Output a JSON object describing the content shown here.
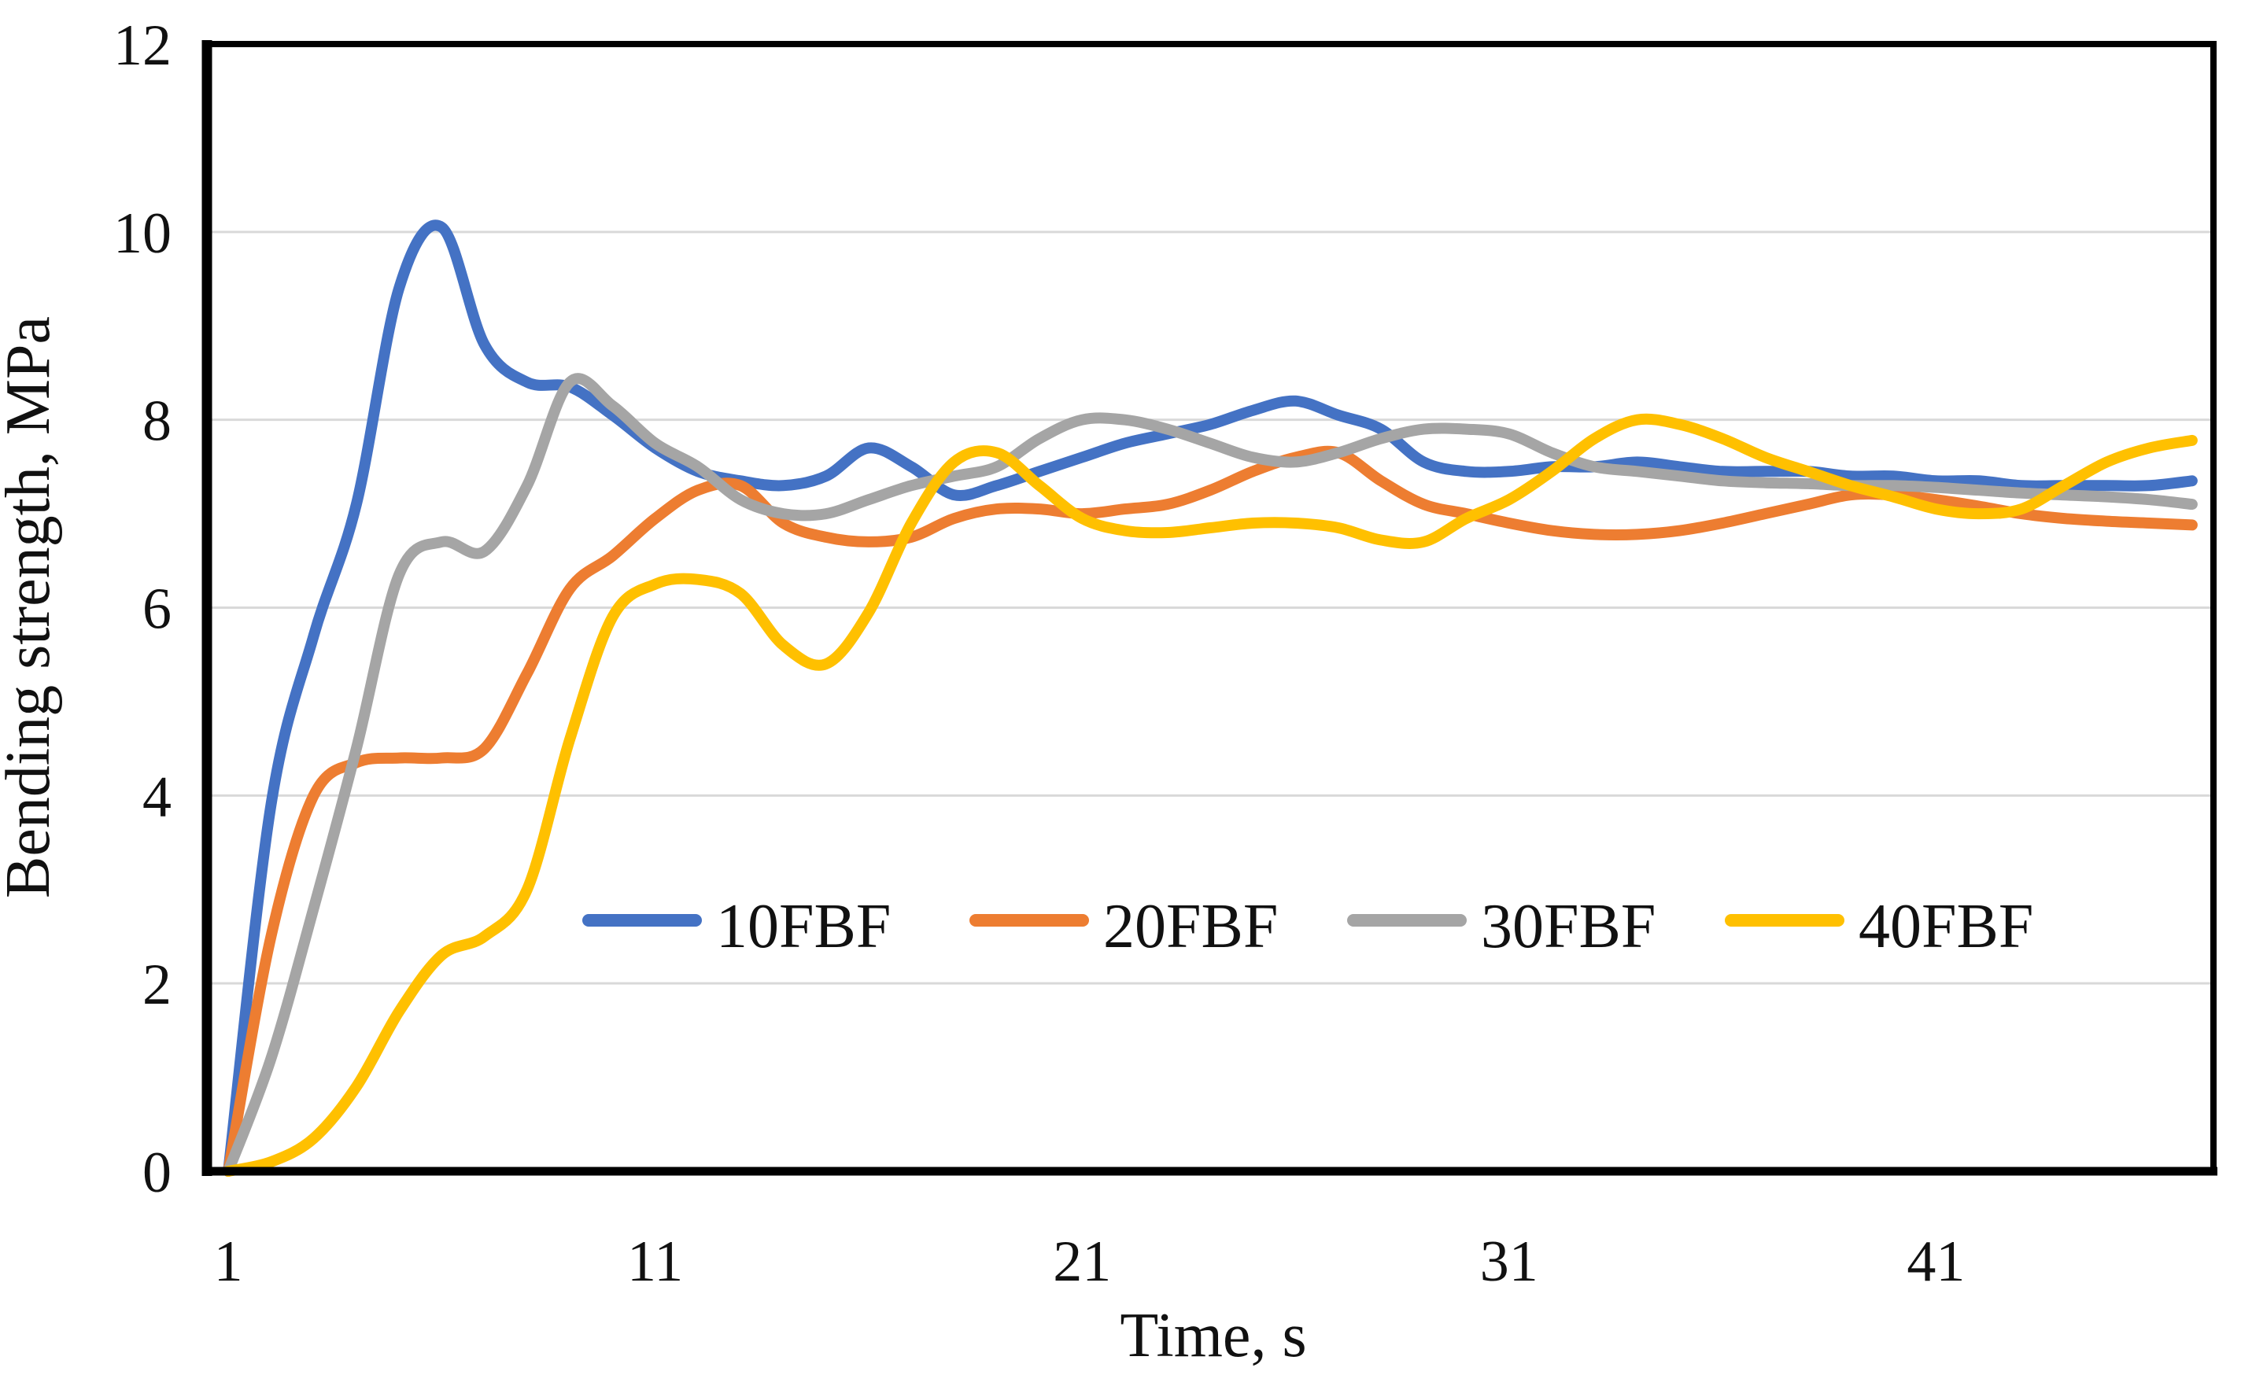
{
  "chart_data": {
    "type": "line",
    "title": "",
    "xlabel": "Time, s",
    "ylabel": "Bending strength, MPa",
    "ylim": [
      0,
      12
    ],
    "y_ticks": [
      0,
      2,
      4,
      6,
      8,
      10,
      12
    ],
    "x_ticks": [
      1,
      11,
      21,
      31,
      41
    ],
    "grid": "horizontal",
    "gridline_color": "#D9D9D9",
    "axis_color": "#000000",
    "background": "#FFFFFF",
    "legend_position": "inside-bottom",
    "line_smoothing": true,
    "x": [
      1,
      2,
      3,
      4,
      5,
      6,
      7,
      8,
      9,
      10,
      11,
      12,
      13,
      14,
      15,
      16,
      17,
      18,
      19,
      20,
      21,
      22,
      23,
      24,
      25,
      26,
      27,
      28,
      29,
      30,
      31,
      32,
      33,
      34,
      35,
      36,
      37,
      38,
      39,
      40,
      41,
      42,
      43,
      44,
      45,
      46,
      47
    ],
    "series": [
      {
        "name": "10FBF",
        "color": "#4472C4",
        "values": [
          0,
          3.9,
          5.7,
          7.1,
          9.4,
          10.05,
          8.8,
          8.4,
          8.35,
          8.05,
          7.7,
          7.45,
          7.35,
          7.3,
          7.4,
          7.7,
          7.5,
          7.2,
          7.3,
          7.45,
          7.6,
          7.75,
          7.85,
          7.95,
          8.1,
          8.2,
          8.05,
          7.9,
          7.55,
          7.45,
          7.45,
          7.5,
          7.5,
          7.55,
          7.5,
          7.45,
          7.45,
          7.45,
          7.4,
          7.4,
          7.35,
          7.35,
          7.3,
          7.3,
          7.3,
          7.3,
          7.35
        ]
      },
      {
        "name": "20FBF",
        "color": "#ED7D31",
        "values": [
          0,
          2.5,
          4.0,
          4.35,
          4.4,
          4.4,
          4.5,
          5.3,
          6.2,
          6.55,
          6.95,
          7.25,
          7.3,
          6.9,
          6.75,
          6.7,
          6.75,
          6.95,
          7.05,
          7.05,
          7.0,
          7.05,
          7.1,
          7.25,
          7.45,
          7.6,
          7.65,
          7.35,
          7.1,
          7.0,
          6.9,
          6.82,
          6.78,
          6.78,
          6.82,
          6.9,
          7.0,
          7.1,
          7.2,
          7.2,
          7.15,
          7.08,
          7.0,
          6.95,
          6.92,
          6.9,
          6.88
        ]
      },
      {
        "name": "30FBF",
        "color": "#A5A5A5",
        "values": [
          0,
          1.2,
          2.8,
          4.5,
          6.35,
          6.7,
          6.6,
          7.3,
          8.4,
          8.15,
          7.75,
          7.5,
          7.15,
          7.0,
          7.0,
          7.15,
          7.3,
          7.4,
          7.5,
          7.8,
          8.0,
          8.0,
          7.9,
          7.75,
          7.6,
          7.55,
          7.65,
          7.8,
          7.9,
          7.9,
          7.85,
          7.65,
          7.5,
          7.45,
          7.4,
          7.35,
          7.33,
          7.32,
          7.3,
          7.3,
          7.28,
          7.25,
          7.22,
          7.2,
          7.18,
          7.15,
          7.1
        ]
      },
      {
        "name": "40FBF",
        "color": "#FFC000",
        "values": [
          0,
          0.1,
          0.35,
          0.9,
          1.7,
          2.3,
          2.5,
          3.0,
          4.6,
          5.9,
          6.25,
          6.3,
          6.15,
          5.6,
          5.4,
          5.95,
          6.9,
          7.55,
          7.65,
          7.3,
          6.95,
          6.82,
          6.8,
          6.85,
          6.9,
          6.9,
          6.85,
          6.72,
          6.7,
          6.95,
          7.15,
          7.45,
          7.8,
          8.0,
          7.95,
          7.8,
          7.6,
          7.45,
          7.3,
          7.18,
          7.05,
          7.0,
          7.05,
          7.3,
          7.55,
          7.7,
          7.78
        ]
      }
    ]
  }
}
